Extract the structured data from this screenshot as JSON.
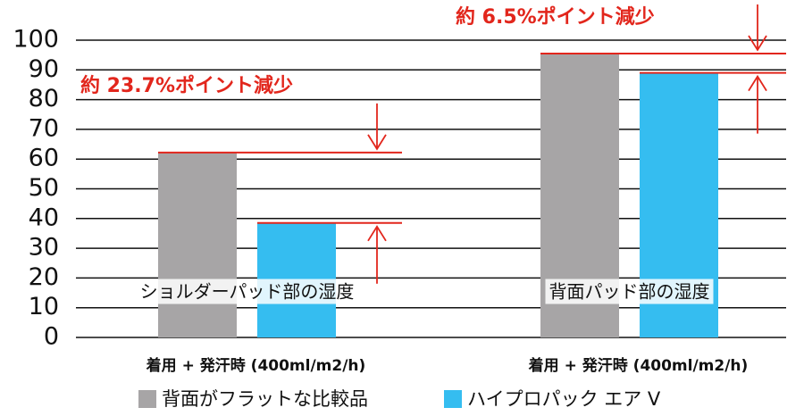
{
  "chart_data": {
    "type": "bar",
    "categories": [
      "ショルダーパッド部の湿度",
      "背面パッド部の湿度"
    ],
    "condition_labels": [
      "着用 + 発汗時 (400ml/m2/h)",
      "着用 + 発汗時 (400ml/m2/h)"
    ],
    "series": [
      {
        "name": "背面がフラットな比較品",
        "color": "#a7a5a6",
        "values": [
          62.2,
          95.5
        ]
      },
      {
        "name": "ハイプロパック エア V",
        "color": "#35bdf0",
        "values": [
          38.5,
          89.0
        ]
      }
    ],
    "annotations": [
      "約 23.7%ポイント減少",
      "約 6.5%ポイント減少"
    ],
    "annotation_color": "#e2261c",
    "ylim": [
      0,
      100
    ],
    "yticks": [
      0,
      10,
      20,
      30,
      40,
      50,
      60,
      70,
      80,
      90,
      100
    ],
    "grid": true
  }
}
